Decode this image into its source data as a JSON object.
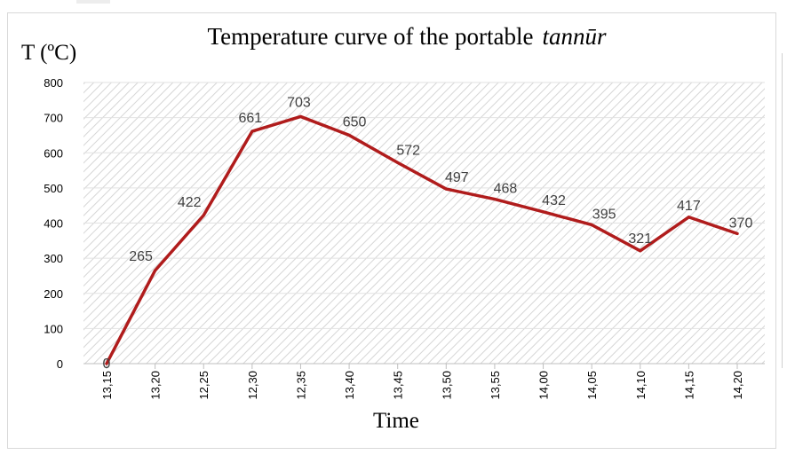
{
  "chart_data": {
    "type": "line",
    "title_main": "Temperature curve of the portable",
    "title_italic": "tannūr",
    "xlabel": "Time",
    "ylabel": "T (ºC)",
    "categories": [
      "13,15",
      "13,20",
      "12,25",
      "12,30",
      "12,35",
      "13,40",
      "13,45",
      "13,50",
      "13,55",
      "14,00",
      "14,05",
      "14,10",
      "14,15",
      "14,20"
    ],
    "values": [
      0,
      265,
      422,
      661,
      703,
      650,
      572,
      497,
      468,
      432,
      395,
      321,
      417,
      370
    ],
    "ylim": [
      0,
      800
    ],
    "yticks": [
      0,
      100,
      200,
      300,
      400,
      500,
      600,
      700,
      800
    ],
    "grid": true,
    "line_color": "#b01c1c",
    "plot_pattern": "diagonal-hatch"
  }
}
